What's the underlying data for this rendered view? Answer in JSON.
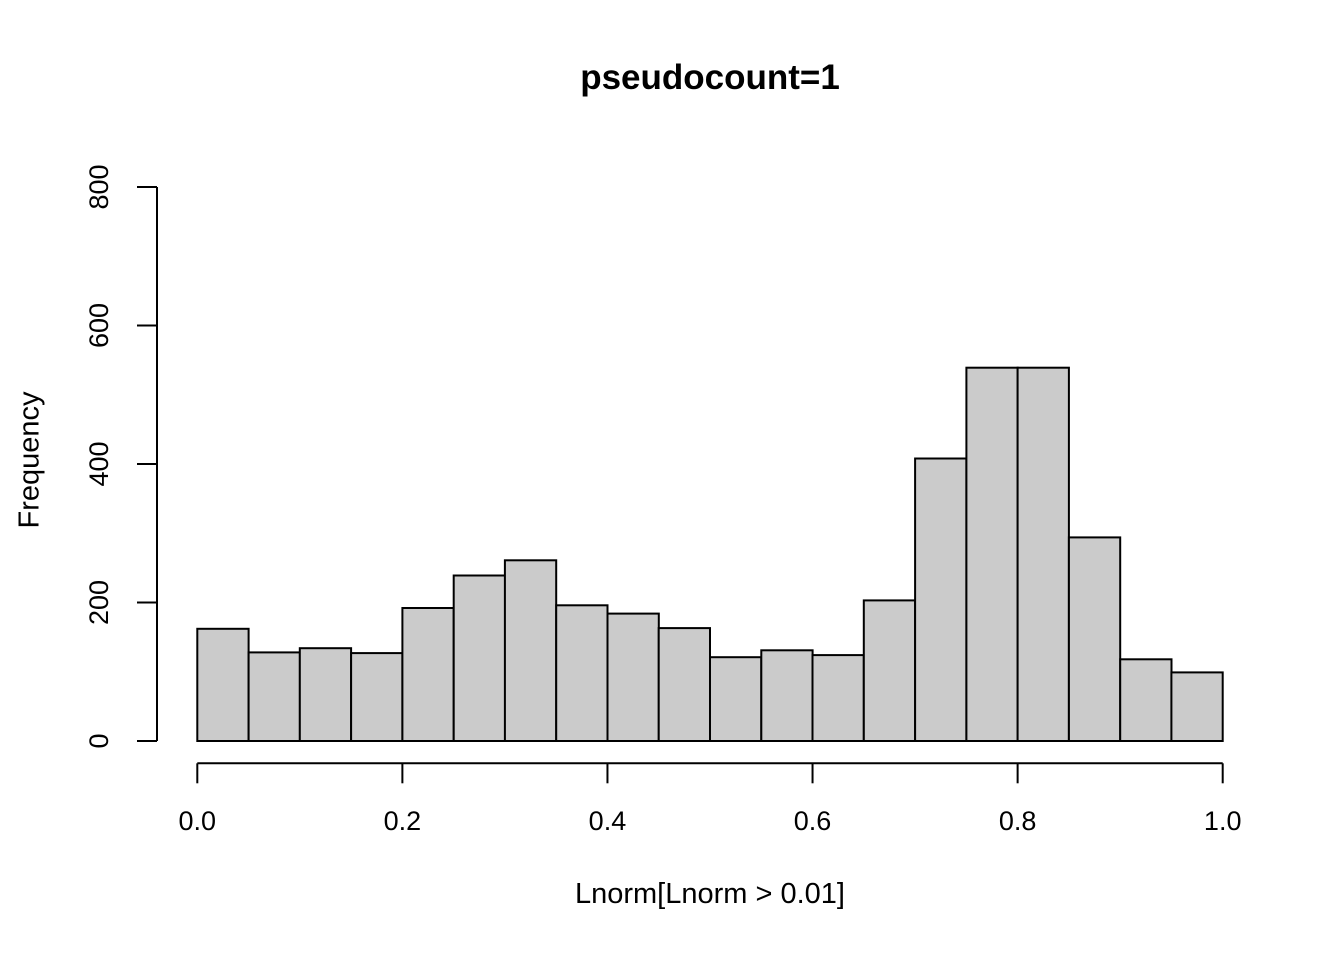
{
  "figure": {
    "title": "pseudocount=1",
    "xlabel": "Lnorm[Lnorm > 0.01]",
    "ylabel": "Frequency"
  },
  "chart_data": {
    "type": "bar",
    "subtype": "histogram",
    "title": "pseudocount=1",
    "xlabel": "Lnorm[Lnorm > 0.01]",
    "ylabel": "Frequency",
    "bin_start": 0.0,
    "bin_width": 0.05,
    "bin_edges": [
      0.0,
      0.05,
      0.1,
      0.15,
      0.2,
      0.25,
      0.3,
      0.35,
      0.4,
      0.45,
      0.5,
      0.55,
      0.6,
      0.65,
      0.7,
      0.75,
      0.8,
      0.85,
      0.9,
      0.95,
      1.0
    ],
    "values": [
      162,
      128,
      134,
      127,
      192,
      239,
      261,
      196,
      184,
      163,
      121,
      131,
      124,
      203,
      408,
      539,
      539,
      294,
      118,
      99
    ],
    "xlim": [
      0.0,
      1.0
    ],
    "ylim": [
      0,
      800
    ],
    "x_ticks": [
      {
        "value": 0.0,
        "label": "0.0"
      },
      {
        "value": 0.2,
        "label": "0.2"
      },
      {
        "value": 0.4,
        "label": "0.4"
      },
      {
        "value": 0.6,
        "label": "0.6"
      },
      {
        "value": 0.8,
        "label": "0.8"
      },
      {
        "value": 1.0,
        "label": "1.0"
      }
    ],
    "y_ticks": [
      {
        "value": 0,
        "label": "0"
      },
      {
        "value": 200,
        "label": "200"
      },
      {
        "value": 400,
        "label": "400"
      },
      {
        "value": 600,
        "label": "600"
      },
      {
        "value": 800,
        "label": "800"
      }
    ],
    "grid": false,
    "legend": null,
    "colors": {
      "bar_fill": "#cbcbcb",
      "bar_stroke": "#000000",
      "axis": "#000000",
      "background": "#ffffff"
    }
  }
}
